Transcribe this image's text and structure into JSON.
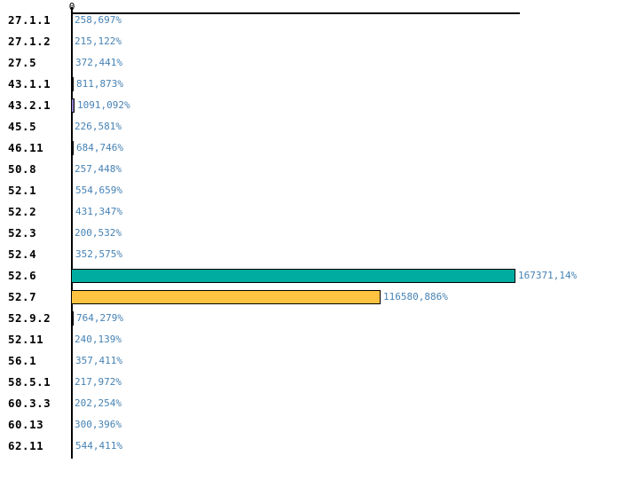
{
  "chart_data": {
    "type": "bar",
    "orientation": "horizontal",
    "title": "",
    "xlabel": "",
    "ylabel": "",
    "legend": null,
    "grid": false,
    "axis": {
      "origin_label": "0",
      "xlim": [
        0,
        169000
      ]
    },
    "categories": [
      "27.1.1",
      "27.1.2",
      "27.5",
      "43.1.1",
      "43.2.1",
      "45.5",
      "46.11",
      "50.8",
      "52.1",
      "52.2",
      "52.3",
      "52.4",
      "52.6",
      "52.7",
      "52.9.2",
      "52.11",
      "56.1",
      "58.5.1",
      "60.3.3",
      "60.13",
      "62.11"
    ],
    "values": [
      258.697,
      215.122,
      372.441,
      811.873,
      1091.092,
      226.581,
      684.746,
      257.448,
      554.659,
      431.347,
      200.532,
      352.575,
      167371.14,
      116580.886,
      764.279,
      240.139,
      357.411,
      217.972,
      202.254,
      300.396,
      544.411
    ],
    "value_labels": [
      "258,697%",
      "215,122%",
      "372,441%",
      "811,873%",
      "1091,092%",
      "226,581%",
      "684,746%",
      "257,448%",
      "554,659%",
      "431,347%",
      "200,532%",
      "352,575%",
      "167371,14%",
      "116580,886%",
      "764,279%",
      "240,139%",
      "357,411%",
      "217,972%",
      "202,254%",
      "300,396%",
      "544,411%"
    ],
    "bar_colors": [
      "#000000",
      "#000000",
      "#000000",
      "#000000",
      "#8C7BC8",
      "#000000",
      "#000000",
      "#000000",
      "#000000",
      "#000000",
      "#000000",
      "#000000",
      "#00ABA0",
      "#FFC342",
      "#000000",
      "#000000",
      "#000000",
      "#000000",
      "#000000",
      "#000000",
      "#000000"
    ]
  },
  "colors": {
    "background": "#ffffff",
    "axis": "#000000",
    "category_text": "#000000",
    "value_text": "#4682B4",
    "bar_outline": "#000000",
    "highlight_teal": "#00ABA0",
    "highlight_orange": "#FFC342",
    "highlight_purple": "#8C7BC8"
  }
}
